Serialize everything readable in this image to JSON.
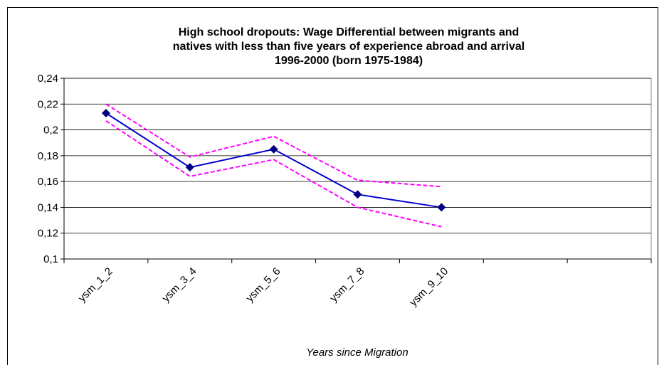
{
  "chart_data": {
    "type": "line",
    "title": [
      "High school dropouts: Wage Differential between migrants and",
      "natives  with less than five years of experience abroad and arrival",
      "1996-2000 (born 1975-1984)"
    ],
    "x_label": "Years since Migration",
    "categories": [
      "ysm_1_2",
      "ysm_3_4",
      "ysm_5_6",
      "ysm_7_8",
      "ysm_9_10",
      null,
      null
    ],
    "series": [
      {
        "color": "#ff00ff",
        "dashed": true,
        "values": [
          0.22,
          0.179,
          0.195,
          0.161,
          0.156,
          null,
          null
        ]
      },
      {
        "color": "#ff00ff",
        "dashed": true,
        "values": [
          0.207,
          0.164,
          0.177,
          0.14,
          0.125,
          null,
          null
        ]
      },
      {
        "color": "#0000cc",
        "marker_color": "#000080",
        "marker": "diamond",
        "values": [
          0.213,
          0.171,
          0.185,
          0.15,
          0.14,
          null,
          null
        ]
      }
    ],
    "ylim": [
      0.1,
      0.24
    ],
    "yticks": [
      {
        "value": 0.1,
        "label": "0,1"
      },
      {
        "value": 0.12,
        "label": "0,12"
      },
      {
        "value": 0.14,
        "label": "0,14"
      },
      {
        "value": 0.16,
        "label": "0,16"
      },
      {
        "value": 0.18,
        "label": "0,18"
      },
      {
        "value": 0.2,
        "label": "0,2"
      },
      {
        "value": 0.22,
        "label": "0,22"
      },
      {
        "value": 0.24,
        "label": "0,24"
      }
    ],
    "grid": true
  }
}
